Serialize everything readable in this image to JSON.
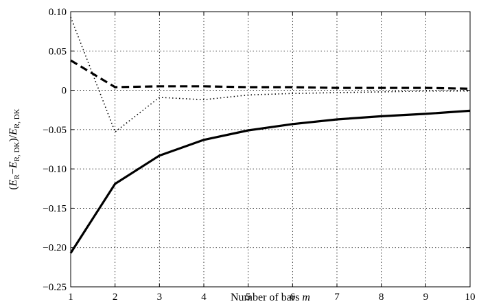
{
  "chart_data": {
    "type": "line",
    "title": "",
    "xlabel": "Number of bars ",
    "xlabel_var": "m",
    "ylabel_parts": [
      {
        "t": "(",
        "s": "n"
      },
      {
        "t": "E",
        "s": "i"
      },
      {
        "t": "R",
        "s": "sub"
      },
      {
        "t": "−",
        "s": "n"
      },
      {
        "t": "E",
        "s": "i"
      },
      {
        "t": "R, DK",
        "s": "sub"
      },
      {
        "t": ")/",
        "s": "n"
      },
      {
        "t": "E",
        "s": "i"
      },
      {
        "t": "R, DK",
        "s": "sub"
      }
    ],
    "xlim": [
      1,
      10
    ],
    "ylim": [
      -0.25,
      0.1
    ],
    "xticks": [
      1,
      2,
      3,
      4,
      5,
      6,
      7,
      8,
      9,
      10
    ],
    "xtick_labels": [
      "1",
      "2",
      "3",
      "4",
      "5",
      "6",
      "7",
      "8",
      "9",
      "10"
    ],
    "yticks": [
      0.1,
      0.05,
      0,
      -0.05,
      -0.1,
      -0.15,
      -0.2,
      -0.25
    ],
    "ytick_labels": [
      "0.10",
      "0.05",
      "0",
      "−0.05",
      "−0.10",
      "−0.15",
      "−0.20",
      "−0.25"
    ],
    "grid": true,
    "x": [
      1,
      2,
      3,
      4,
      5,
      6,
      7,
      8,
      9,
      10
    ],
    "series": [
      {
        "style": "solid",
        "values": [
          -0.207,
          -0.119,
          -0.083,
          -0.063,
          -0.051,
          -0.043,
          -0.037,
          -0.033,
          -0.03,
          -0.026
        ]
      },
      {
        "style": "dashed",
        "values": [
          0.038,
          0.004,
          0.005,
          0.005,
          0.004,
          0.004,
          0.003,
          0.003,
          0.003,
          0.002
        ]
      },
      {
        "style": "dotted",
        "values": [
          0.093,
          -0.053,
          -0.009,
          -0.012,
          -0.006,
          -0.004,
          -0.003,
          -0.002,
          -0.001,
          -0.001
        ]
      }
    ]
  }
}
